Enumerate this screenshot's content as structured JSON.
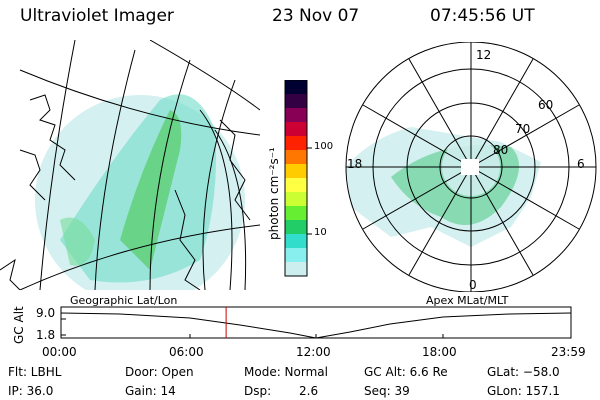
{
  "header": {
    "instrument": "Ultraviolet Imager",
    "date": "23 Nov 07",
    "time": "07:45:56 UT"
  },
  "colorbar": {
    "units": "photon cm⁻²s⁻¹",
    "ticks": [
      "100",
      "10"
    ],
    "colors": [
      "#000033",
      "#330044",
      "#880055",
      "#cc0033",
      "#ff2200",
      "#ff7700",
      "#ffcc00",
      "#ffff44",
      "#ccff33",
      "#66ee33",
      "#22cc66",
      "#33ddcc",
      "#88eeee",
      "#cceeee"
    ]
  },
  "polar": {
    "mlt_labels": [
      "12",
      "18",
      "6",
      "0"
    ],
    "mlat_labels": [
      "60",
      "70",
      "80"
    ]
  },
  "left_panel_label": "Geographic Lat/Lon",
  "right_panel_label": "Apex MLat/MLT",
  "altitude_plot": {
    "ylabel": "GC Alt",
    "yticks": [
      "9.0",
      "1.8"
    ],
    "xticks": [
      "00:00",
      "06:00",
      "12:00",
      "18:00",
      "23:59"
    ],
    "current_time_marker_hours": 7.77
  },
  "info": {
    "row1": {
      "flt": "Flt: LBHL",
      "door": "Door: Open",
      "mode": "Mode: Normal",
      "gcalt": "GC Alt: 6.6 Re",
      "glat": "GLat: −58.0"
    },
    "row2": {
      "ip": "IP: 36.0",
      "gain": "Gain: 14",
      "dsp_label": "Dsp:",
      "dsp_value": "2.6",
      "seq": "Seq: 39",
      "glon": "GLon: 157.1"
    }
  }
}
